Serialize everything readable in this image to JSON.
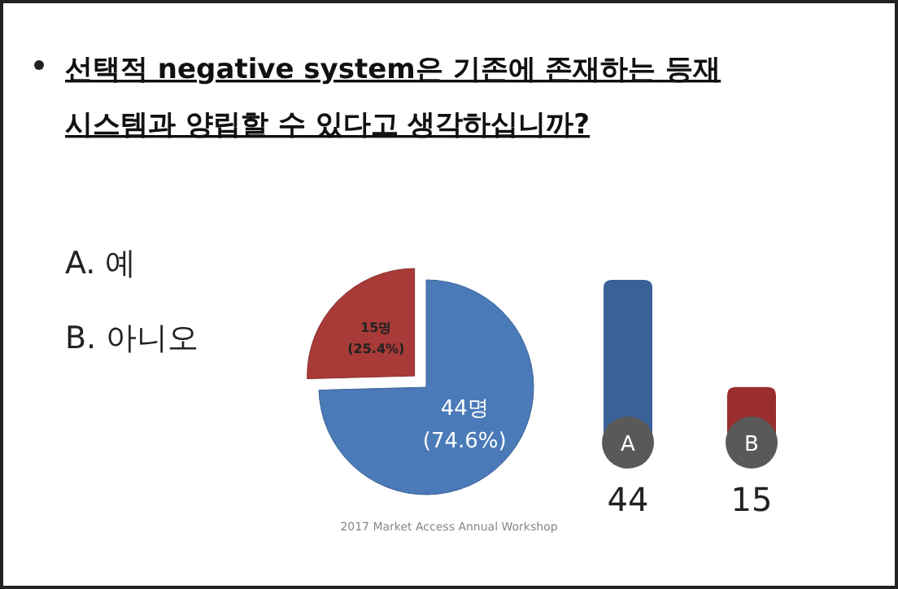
{
  "chart_data": [
    {
      "type": "pie",
      "title": "선택적 negative system은 기존에 존재하는 등재 시스템과 양립할 수 있다고 생각하십니까?",
      "categories": [
        null,
        null
      ],
      "values": [
        44,
        15
      ],
      "colors": [
        "#4a7ab8",
        "#a83a38"
      ],
      "value_labels": [
        "44명 (74.6%)",
        "15명 (25.4%)"
      ],
      "annotations": [
        "A. 예",
        "B. 아니오",
        "2017 Market Access Annual Workshop"
      ]
    },
    {
      "type": "bar",
      "categories": [
        "A",
        "B"
      ],
      "values": [
        44,
        15
      ],
      "colors": [
        "#3a6298",
        "#9a2e2e"
      ],
      "data_labels": true
    }
  ]
}
